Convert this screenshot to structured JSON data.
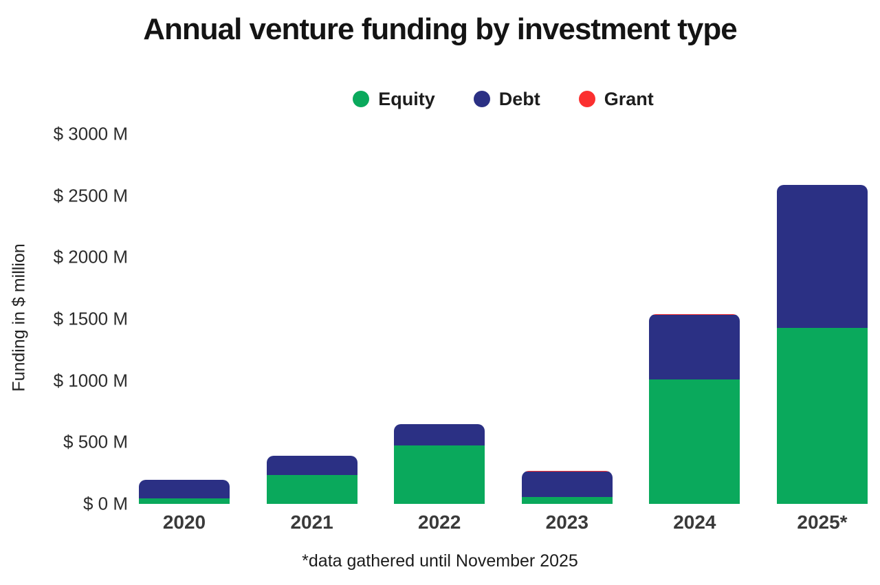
{
  "page": {
    "background": "#ffffff"
  },
  "chart_data": {
    "type": "bar",
    "stacked": true,
    "title": "Annual venture funding by investment type",
    "categories": [
      "2020",
      "2021",
      "2022",
      "2023",
      "2024",
      "2025*"
    ],
    "series": [
      {
        "name": "Equity",
        "color": "#0aa95c",
        "values": [
          45,
          235,
          475,
          55,
          1010,
          1425
        ]
      },
      {
        "name": "Debt",
        "color": "#2b3084",
        "values": [
          150,
          155,
          170,
          205,
          525,
          1165
        ]
      },
      {
        "name": "Grant",
        "color": "#fb2f2f",
        "values": [
          0,
          0,
          0,
          10,
          5,
          0
        ]
      }
    ],
    "totals": [
      195,
      390,
      645,
      270,
      1540,
      2590
    ],
    "xlabel": "",
    "ylabel": "Funding in $ million",
    "ylim": [
      0,
      3000
    ],
    "ytick_step": 500,
    "ytick_labels": [
      "$ 0 M",
      "$ 500 M",
      "$ 1000 M",
      "$ 1500 M",
      "$ 2000 M",
      "$ 2500 M",
      "$ 3000 M"
    ],
    "legend_position": "top",
    "grid": false,
    "footnote": "*data gathered until November 2025"
  }
}
